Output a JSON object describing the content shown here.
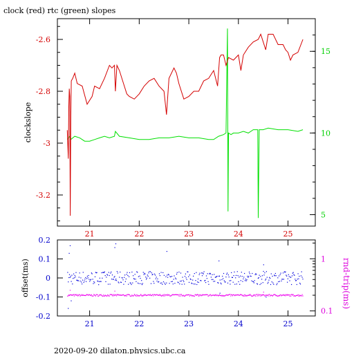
{
  "chart_data": [
    {
      "type": "line",
      "title": "clock (red) rtc (green) slopes",
      "xlabel": "",
      "ylabel": "clockslope",
      "y2label": "",
      "xlim": [
        20.35,
        25.55
      ],
      "ylim": [
        -3.32,
        -2.52
      ],
      "y2lim": [
        4.3,
        17.0
      ],
      "x_ticks": [
        21,
        22,
        23,
        24,
        25
      ],
      "y_ticks": [
        -2.6,
        -2.8,
        -3.0,
        -3.2
      ],
      "y_tick_labels": [
        "-2.6",
        "-2.8",
        "-3",
        "-3.2"
      ],
      "y2_ticks": [
        15,
        10,
        5
      ],
      "colors": {
        "clock": "#d40000",
        "rtc": "#00e000",
        "axis_left": "#d40000",
        "axis_right": "#00d000",
        "frame": "#000000"
      },
      "series": [
        {
          "axis": "left",
          "x": [
            20.55,
            20.57,
            20.58,
            20.59,
            20.6,
            20.61,
            20.62,
            20.63,
            20.66,
            20.7,
            20.75,
            20.85,
            20.95,
            21.05,
            21.1,
            21.2,
            21.3,
            21.4,
            21.45,
            21.5,
            21.52,
            21.55,
            21.6,
            21.7,
            21.75,
            21.8,
            21.9,
            22.0,
            22.1,
            22.2,
            22.3,
            22.4,
            22.5,
            22.55,
            22.6,
            22.7,
            22.75,
            22.8,
            22.9,
            23.0,
            23.1,
            23.2,
            23.3,
            23.4,
            23.5,
            23.58,
            23.62,
            23.65,
            23.7,
            23.75,
            23.8,
            23.9,
            24.0,
            24.05,
            24.1,
            24.2,
            24.3,
            24.4,
            24.45,
            24.5,
            24.55,
            24.6,
            24.7,
            24.8,
            24.9,
            24.95,
            25.0,
            25.05,
            25.1,
            25.2,
            25.3
          ],
          "y": [
            -2.95,
            -3.06,
            -2.86,
            -2.79,
            -2.82,
            -3.28,
            -2.9,
            -2.76,
            -2.75,
            -2.73,
            -2.77,
            -2.78,
            -2.85,
            -2.82,
            -2.78,
            -2.79,
            -2.75,
            -2.7,
            -2.71,
            -2.7,
            -2.8,
            -2.7,
            -2.72,
            -2.78,
            -2.81,
            -2.82,
            -2.83,
            -2.81,
            -2.78,
            -2.76,
            -2.75,
            -2.78,
            -2.8,
            -2.89,
            -2.75,
            -2.71,
            -2.73,
            -2.77,
            -2.83,
            -2.82,
            -2.8,
            -2.8,
            -2.76,
            -2.75,
            -2.72,
            -2.78,
            -2.67,
            -2.66,
            -2.66,
            -2.7,
            -2.67,
            -2.68,
            -2.66,
            -2.72,
            -2.66,
            -2.63,
            -2.61,
            -2.6,
            -2.58,
            -2.61,
            -2.64,
            -2.58,
            -2.58,
            -2.62,
            -2.62,
            -2.64,
            -2.65,
            -2.68,
            -2.66,
            -2.65,
            -2.6
          ]
        },
        {
          "axis": "right",
          "x": [
            20.55,
            20.6,
            20.62,
            20.7,
            20.8,
            20.9,
            21.0,
            21.1,
            21.2,
            21.3,
            21.4,
            21.5,
            21.52,
            21.6,
            21.8,
            22.0,
            22.2,
            22.4,
            22.6,
            22.8,
            23.0,
            23.2,
            23.4,
            23.5,
            23.6,
            23.7,
            23.75,
            23.78,
            23.79,
            23.8,
            23.85,
            23.9,
            24.0,
            24.1,
            24.2,
            24.3,
            24.39,
            24.4,
            24.42,
            24.5,
            24.6,
            24.8,
            25.0,
            25.2,
            25.3
          ],
          "y": [
            9.6,
            9.8,
            9.6,
            9.8,
            9.7,
            9.5,
            9.5,
            9.6,
            9.7,
            9.8,
            9.7,
            9.8,
            10.1,
            9.8,
            9.7,
            9.6,
            9.6,
            9.7,
            9.7,
            9.8,
            9.7,
            9.7,
            9.6,
            9.6,
            9.8,
            9.9,
            10.0,
            16.4,
            5.2,
            10.0,
            9.9,
            10.0,
            10.0,
            10.1,
            10.0,
            10.2,
            10.2,
            4.8,
            10.2,
            10.2,
            10.3,
            10.2,
            10.2,
            10.1,
            10.2
          ]
        }
      ]
    },
    {
      "type": "scatter",
      "title": "",
      "xlabel": "",
      "ylabel": "offset(ms)",
      "y2label": "rnd-trip(ms)",
      "y2_scale": "log",
      "xlim": [
        20.35,
        25.55
      ],
      "ylim": [
        -0.2,
        0.2
      ],
      "y2lim": [
        0.08,
        2.3
      ],
      "x_ticks": [
        21,
        22,
        23,
        24,
        25
      ],
      "y_ticks": [
        0.2,
        0.1,
        0,
        -0.1,
        -0.2
      ],
      "y_tick_labels": [
        "0.2",
        "0.1",
        "0",
        "-0.1",
        "-0.2"
      ],
      "y2_ticks": [
        1,
        0.1
      ],
      "y2_tick_labels": [
        "1",
        "0.1"
      ],
      "colors": {
        "offset": "#0000dd",
        "rndtrip": "#ee00ee",
        "axis_left": "#0000cc",
        "axis_right": "#dd00dd",
        "frame": "#000000"
      },
      "offset_spread_ms": 0.035,
      "rndtrip_level_ms": 0.2,
      "outliers": {
        "offset": {
          "x": [
            20.58,
            20.6,
            20.62,
            21.5,
            21.52,
            22.55,
            23.6,
            23.62,
            24.5,
            24.55,
            20.56
          ],
          "y": [
            0.13,
            0.17,
            -0.12,
            0.16,
            0.18,
            0.14,
            0.09,
            -0.08,
            0.07,
            -0.1,
            -0.16
          ]
        },
        "rndtrip": {
          "x": [
            20.6,
            21.5,
            24.5
          ],
          "y": [
            0.25,
            0.24,
            0.23
          ]
        }
      }
    }
  ],
  "footer": {
    "text": "2020-09-20  dilaton.physics.ubc.ca"
  }
}
